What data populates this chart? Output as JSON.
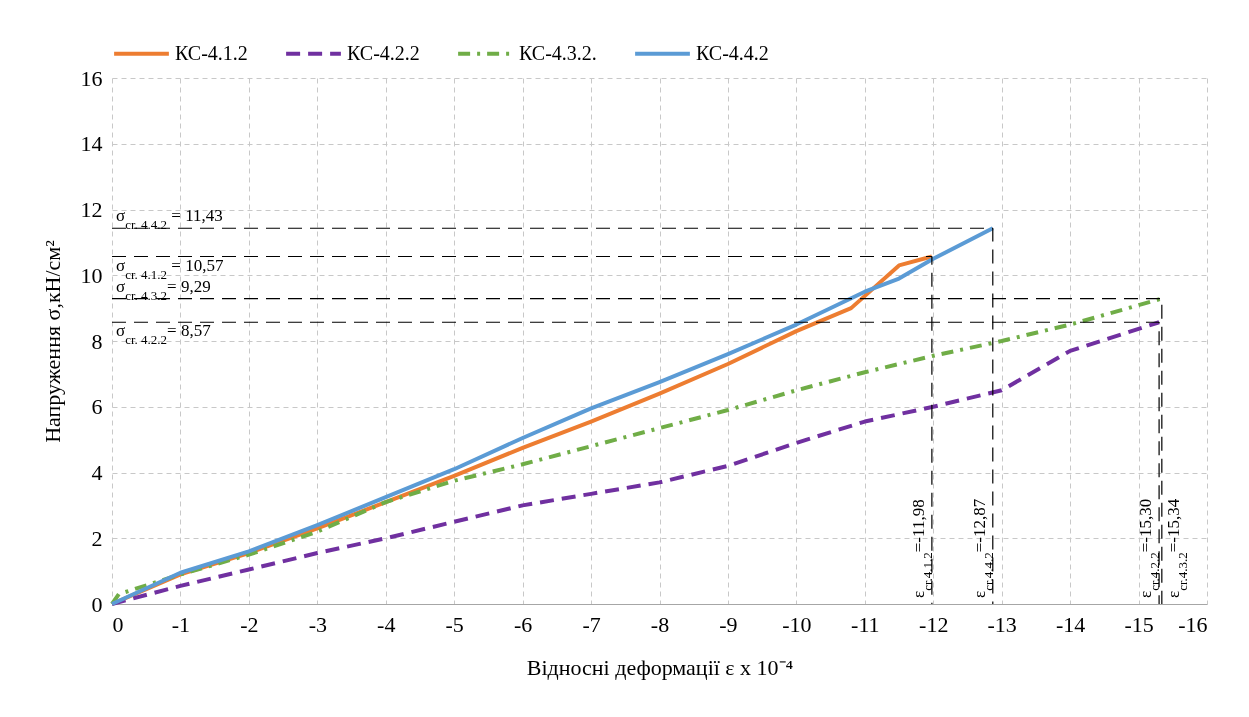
{
  "chart_data": {
    "type": "line",
    "xlabel": "Відносні деформації ε x 10⁻⁴",
    "ylabel": "Напруження σ,кН/см²",
    "xlim": [
      0,
      -16
    ],
    "xticks": [
      0,
      -1,
      -2,
      -3,
      -4,
      -5,
      -6,
      -7,
      -8,
      -9,
      -10,
      -11,
      -12,
      -13,
      -14,
      -15,
      -16
    ],
    "ylim": [
      0,
      16
    ],
    "yticks": [
      0,
      2,
      4,
      6,
      8,
      10,
      12,
      14,
      16
    ],
    "grid": true,
    "legend": "top",
    "series": [
      {
        "name": "КС-4.1.2",
        "color": "#ed7d31",
        "line_style": "solid",
        "x": [
          0,
          -1,
          -2,
          -3,
          -4,
          -5,
          -6,
          -7,
          -8,
          -9,
          -10,
          -10.8,
          -11.5,
          -11.98
        ],
        "values": [
          0,
          0.9,
          1.55,
          2.3,
          3.1,
          3.9,
          4.75,
          5.55,
          6.4,
          7.3,
          8.3,
          9.0,
          10.3,
          10.57
        ]
      },
      {
        "name": "КС-4.2.2",
        "color": "#7030a0",
        "line_style": "dashed",
        "x": [
          0,
          -1,
          -2,
          -3,
          -4,
          -5,
          -6,
          -7,
          -8,
          -9,
          -10,
          -11,
          -12,
          -13,
          -14,
          -15.3
        ],
        "values": [
          0,
          0.55,
          1.05,
          1.55,
          2.0,
          2.5,
          3.0,
          3.35,
          3.7,
          4.2,
          4.9,
          5.55,
          6.0,
          6.5,
          7.7,
          8.57
        ]
      },
      {
        "name": "КС-4.3.2.",
        "color": "#70ad47",
        "line_style": "dotted",
        "x": [
          0,
          -0.1,
          -1,
          -2,
          -3,
          -4,
          -5,
          -6,
          -7,
          -8,
          -9,
          -10,
          -11,
          -12,
          -13,
          -14,
          -15.34
        ],
        "values": [
          0,
          0.3,
          0.9,
          1.5,
          2.2,
          3.1,
          3.75,
          4.25,
          4.8,
          5.35,
          5.9,
          6.5,
          7.05,
          7.55,
          8.0,
          8.5,
          9.29
        ]
      },
      {
        "name": "КС-4.4.2",
        "color": "#5b9bd5",
        "line_style": "solid",
        "x": [
          0,
          -1,
          -2,
          -3,
          -4,
          -5,
          -6,
          -7,
          -8,
          -9,
          -10,
          -11,
          -11.5,
          -12,
          -12.87
        ],
        "values": [
          0,
          0.95,
          1.6,
          2.4,
          3.25,
          4.1,
          5.05,
          5.95,
          6.75,
          7.6,
          8.5,
          9.5,
          9.9,
          10.5,
          11.43
        ]
      },
      {
        "type": "line",
        "color": "#000000",
        "line_style": "dashed",
        "x": [
          0,
          -12.87,
          -12.87
        ],
        "values": [
          11.43,
          11.43,
          0
        ]
      },
      {
        "type": "line",
        "color": "#000000",
        "line_style": "dashed",
        "x": [
          0,
          -11.98,
          -11.98
        ],
        "values": [
          10.57,
          10.57,
          0
        ]
      },
      {
        "type": "line",
        "color": "#000000",
        "line_style": "dashed",
        "x": [
          0,
          -15.34,
          -15.34
        ],
        "values": [
          9.29,
          9.29,
          0
        ]
      },
      {
        "type": "line",
        "color": "#000000",
        "line_style": "dashed",
        "x": [
          0,
          -15.3,
          -15.3
        ],
        "values": [
          8.57,
          8.57,
          0
        ]
      }
    ],
    "annotations": [
      {
        "text": "σ$_{cr. 4.4.2}$ = 11,43",
        "x": 0,
        "y": 11.43
      },
      {
        "text": "σ$_{cr. 4.1.2}$ = 10,57",
        "x": 0,
        "y": 10.57
      },
      {
        "text": "σ$_{cr. 4.3.2}$= 9,29",
        "x": 0,
        "y": 9.29
      },
      {
        "text": "σ$_{cr. 4.2.2}$= 8,57",
        "x": 0,
        "y": 8.57
      },
      {
        "text": "ε$_{cr.4.1.2}$=-11,98",
        "x": -11.98,
        "y": 0
      },
      {
        "text": "ε$_{cr.4.4.2}$=-12,87",
        "x": -12.87,
        "y": 0
      },
      {
        "text": "ε$_{cr.4.2.2}$=-15,30",
        "x": -15.3,
        "y": 0
      },
      {
        "text": "ε$_{cr.4.3.2}$=-15,34",
        "x": -15.34,
        "y": 0
      }
    ]
  }
}
